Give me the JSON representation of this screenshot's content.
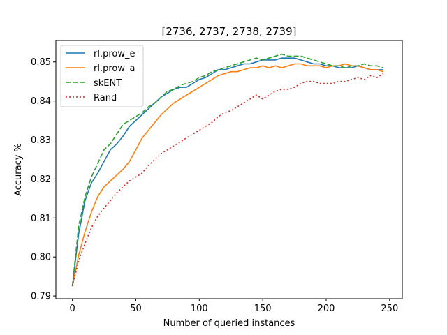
{
  "chart_data": {
    "type": "line",
    "title": "[2736, 2737, 2738, 2739]",
    "xlabel": "Number of queried instances",
    "ylabel": "Accuracy %",
    "xlim": [
      -13,
      260
    ],
    "ylim": [
      0.7893,
      0.8555
    ],
    "xticks": [
      0,
      50,
      100,
      150,
      200,
      250
    ],
    "yticks": [
      0.79,
      0.8,
      0.81,
      0.82,
      0.83,
      0.84,
      0.85
    ],
    "ytick_labels": [
      "0.79",
      "0.80",
      "0.81",
      "0.82",
      "0.83",
      "0.84",
      "0.85"
    ],
    "legend_position": "upper-left",
    "grid": false,
    "series": [
      {
        "name": "rl.prow_e",
        "color": "#1f77b4",
        "dash": "solid",
        "x": [
          0,
          5,
          10,
          15,
          20,
          25,
          30,
          35,
          40,
          45,
          50,
          55,
          60,
          65,
          70,
          75,
          80,
          85,
          90,
          95,
          100,
          105,
          110,
          115,
          120,
          125,
          130,
          135,
          140,
          145,
          150,
          155,
          160,
          165,
          170,
          175,
          180,
          185,
          190,
          195,
          200,
          205,
          210,
          215,
          220,
          225,
          230,
          235,
          240,
          245
        ],
        "y": [
          0.7925,
          0.806,
          0.8145,
          0.819,
          0.8215,
          0.8245,
          0.8275,
          0.829,
          0.831,
          0.8335,
          0.835,
          0.8365,
          0.838,
          0.8395,
          0.841,
          0.842,
          0.843,
          0.8435,
          0.8435,
          0.8445,
          0.8455,
          0.846,
          0.847,
          0.848,
          0.848,
          0.8485,
          0.849,
          0.8495,
          0.8495,
          0.85,
          0.8505,
          0.8505,
          0.8505,
          0.851,
          0.851,
          0.851,
          0.8505,
          0.85,
          0.8495,
          0.8495,
          0.849,
          0.849,
          0.8485,
          0.8485,
          0.8485,
          0.849,
          0.8485,
          0.848,
          0.848,
          0.848
        ]
      },
      {
        "name": "rl.prow_a",
        "color": "#ff7f0e",
        "dash": "solid",
        "x": [
          0,
          5,
          10,
          15,
          20,
          25,
          30,
          35,
          40,
          45,
          50,
          55,
          60,
          65,
          70,
          75,
          80,
          85,
          90,
          95,
          100,
          105,
          110,
          115,
          120,
          125,
          130,
          135,
          140,
          145,
          150,
          155,
          160,
          165,
          170,
          175,
          180,
          185,
          190,
          195,
          200,
          205,
          210,
          215,
          220,
          225,
          230,
          235,
          240,
          245
        ],
        "y": [
          0.7925,
          0.8005,
          0.8065,
          0.8115,
          0.8155,
          0.818,
          0.8195,
          0.821,
          0.8225,
          0.8245,
          0.8275,
          0.8305,
          0.8325,
          0.8345,
          0.8365,
          0.838,
          0.8395,
          0.8405,
          0.8415,
          0.8425,
          0.8435,
          0.8445,
          0.8455,
          0.8465,
          0.847,
          0.8475,
          0.8475,
          0.848,
          0.8485,
          0.8485,
          0.849,
          0.8485,
          0.849,
          0.8485,
          0.849,
          0.8495,
          0.8495,
          0.849,
          0.849,
          0.849,
          0.8485,
          0.849,
          0.849,
          0.8495,
          0.849,
          0.849,
          0.8485,
          0.848,
          0.848,
          0.8475
        ]
      },
      {
        "name": "skENT",
        "color": "#2ca02c",
        "dash": "dashed",
        "x": [
          0,
          5,
          10,
          15,
          20,
          25,
          30,
          35,
          40,
          45,
          50,
          55,
          60,
          65,
          70,
          75,
          80,
          85,
          90,
          95,
          100,
          105,
          110,
          115,
          120,
          125,
          130,
          135,
          140,
          145,
          150,
          155,
          160,
          165,
          170,
          175,
          180,
          185,
          190,
          195,
          200,
          205,
          210,
          215,
          220,
          225,
          230,
          235,
          240,
          245
        ],
        "y": [
          0.7925,
          0.808,
          0.8155,
          0.8205,
          0.824,
          0.8275,
          0.829,
          0.8315,
          0.834,
          0.835,
          0.836,
          0.837,
          0.8385,
          0.8395,
          0.841,
          0.8425,
          0.843,
          0.844,
          0.8445,
          0.845,
          0.846,
          0.8465,
          0.8475,
          0.848,
          0.8485,
          0.849,
          0.8495,
          0.85,
          0.8505,
          0.851,
          0.8505,
          0.851,
          0.8515,
          0.852,
          0.8515,
          0.8515,
          0.8515,
          0.851,
          0.8505,
          0.85,
          0.8495,
          0.849,
          0.849,
          0.8485,
          0.849,
          0.849,
          0.8495,
          0.849,
          0.849,
          0.8485
        ]
      },
      {
        "name": "Rand",
        "color": "#d62728",
        "dash": "dotted",
        "x": [
          0,
          5,
          10,
          15,
          20,
          25,
          30,
          35,
          40,
          45,
          50,
          55,
          60,
          65,
          70,
          75,
          80,
          85,
          90,
          95,
          100,
          105,
          110,
          115,
          120,
          125,
          130,
          135,
          140,
          145,
          150,
          155,
          160,
          165,
          170,
          175,
          180,
          185,
          190,
          195,
          200,
          205,
          210,
          215,
          220,
          225,
          230,
          235,
          240,
          245
        ],
        "y": [
          0.7925,
          0.799,
          0.8035,
          0.8075,
          0.8105,
          0.8125,
          0.8145,
          0.8165,
          0.818,
          0.8195,
          0.8205,
          0.8215,
          0.8235,
          0.825,
          0.8265,
          0.8275,
          0.8285,
          0.8295,
          0.8305,
          0.8315,
          0.8325,
          0.8335,
          0.8345,
          0.836,
          0.837,
          0.8375,
          0.8385,
          0.8395,
          0.8405,
          0.8415,
          0.8405,
          0.8415,
          0.8425,
          0.843,
          0.843,
          0.8435,
          0.8445,
          0.845,
          0.845,
          0.8445,
          0.8445,
          0.8445,
          0.845,
          0.845,
          0.8455,
          0.846,
          0.8455,
          0.8465,
          0.846,
          0.847
        ]
      }
    ]
  }
}
